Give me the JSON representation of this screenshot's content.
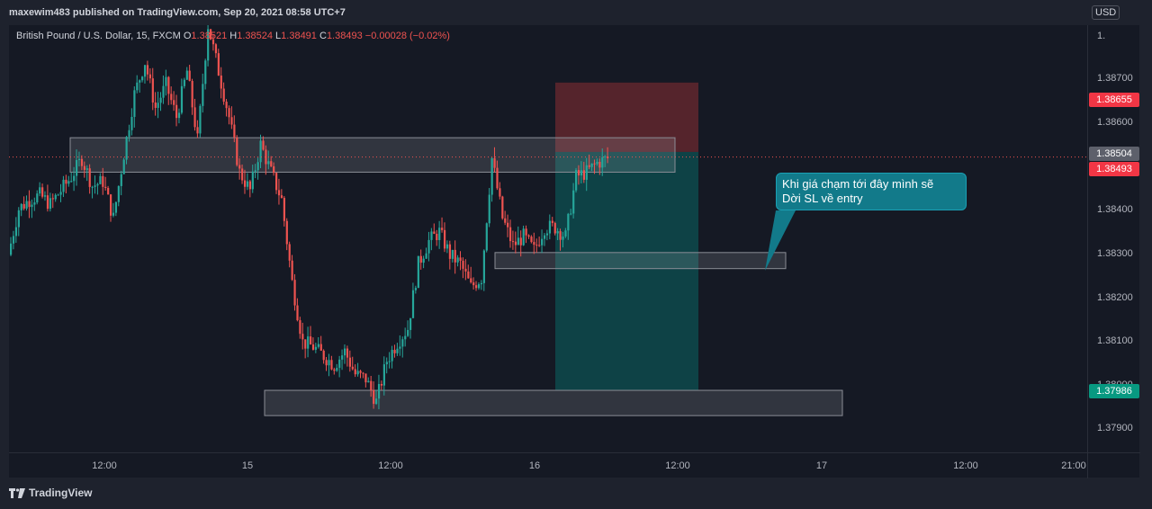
{
  "header": {
    "publisher": "maxewim483 published on TradingView.com, Sep 20, 2021 08:58 UTC+7"
  },
  "legend": {
    "symbol": "British Pound / U.S. Dollar, 15, FXCM",
    "o_label": "O",
    "o_value": "1.38521",
    "h_label": "H",
    "h_value": "1.38524",
    "l_label": "L",
    "l_value": "1.38491",
    "c_label": "C",
    "c_value": "1.38493",
    "change": "−0.00028 (−0.02%)"
  },
  "price_axis": {
    "currency_button": "USD",
    "top_partial": "1.",
    "ticks": [
      "1.38700",
      "1.38600",
      "1.38400",
      "1.38300",
      "1.38200",
      "1.38100",
      "1.37900"
    ],
    "hidden_tick": "1.38000",
    "tags": [
      {
        "label": "1.38655",
        "color": "#f23645"
      },
      {
        "label": "1.38504",
        "color": "#5d606b"
      },
      {
        "label": "1.38493",
        "color": "#f23645"
      },
      {
        "label": "1.37986",
        "color": "#089981"
      }
    ]
  },
  "time_axis": {
    "ticks": [
      "12:00",
      "15",
      "12:00",
      "16",
      "12:00",
      "17",
      "12:00",
      "21:00"
    ]
  },
  "annotation": {
    "text_line1": "Khi giá chạm tới đây mình sẽ",
    "text_line2": "Dời SL về entry"
  },
  "footer": {
    "brand": "TradingView"
  },
  "colors": {
    "up": "#26a69a",
    "down": "#ef5350",
    "background": "#151924",
    "stop_zone": "#8b2e33",
    "target_zone": "#0d4a4c"
  },
  "chart_data": {
    "type": "candlestick",
    "symbol": "GBPUSD",
    "interval": "15",
    "ylim": [
      1.3785,
      1.3878
    ],
    "last_price": 1.38493,
    "zones": [
      {
        "from": 1.3846,
        "to": 1.38535
      },
      {
        "from": 1.3825,
        "to": 1.38285
      },
      {
        "from": 1.3793,
        "to": 1.37985
      }
    ],
    "position": {
      "entry": 1.38504,
      "stop": 1.38655,
      "target": 1.37986
    },
    "path": [
      1.3828,
      1.3838,
      1.384,
      1.3841,
      1.3839,
      1.3842,
      1.3845,
      1.3849,
      1.3843,
      1.3844,
      1.3836,
      1.385,
      1.3863,
      1.387,
      1.386,
      1.3865,
      1.3858,
      1.3868,
      1.3853,
      1.3878,
      1.3868,
      1.3858,
      1.3846,
      1.3842,
      1.3852,
      1.3846,
      1.384,
      1.3822,
      1.3809,
      1.3808,
      1.3806,
      1.3804,
      1.3807,
      1.3802,
      1.3801,
      1.3796,
      1.3805,
      1.3809,
      1.3812,
      1.3826,
      1.3831,
      1.3833,
      1.3828,
      1.3826,
      1.3821,
      1.3823,
      1.3849,
      1.3836,
      1.383,
      1.3832,
      1.3829,
      1.3834,
      1.3834,
      1.3832,
      1.3845,
      1.3846,
      1.3848,
      1.3849
    ]
  }
}
